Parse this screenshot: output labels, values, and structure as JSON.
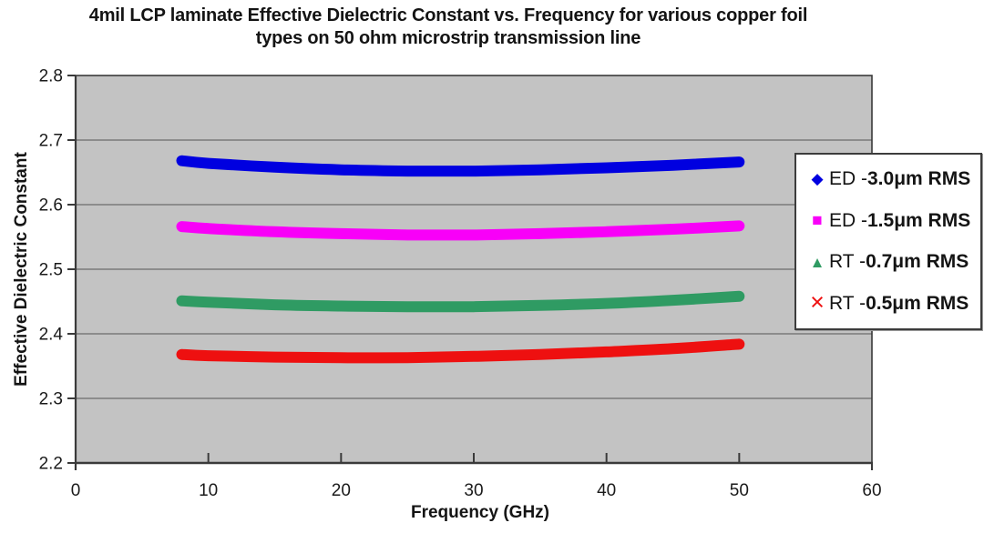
{
  "title": {
    "lines": [
      "4mil LCP laminate Effective Dielectric Constant vs. Frequency for various copper foil",
      "types on 50 ohm microstrip transmission line"
    ]
  },
  "chart_data": {
    "type": "line",
    "title": "4mil LCP laminate Effective Dielectric Constant vs. Frequency for various copper foil types on 50 ohm microstrip transmission line",
    "xlabel": "Frequency (GHz)",
    "ylabel": "Effective Dielectric Constant",
    "xlim": [
      0,
      60
    ],
    "ylim": [
      2.2,
      2.8
    ],
    "x_tick_labels": [
      "0",
      "10",
      "20",
      "30",
      "40",
      "50",
      "60"
    ],
    "y_tick_labels": [
      "2.2",
      "2.3",
      "2.4",
      "2.5",
      "2.6",
      "2.7",
      "2.8"
    ],
    "grid": "horizontal",
    "plot_background": "#c3c3c3",
    "gridline_color": "#6b6b6b",
    "axis_color": "#3a3a3a",
    "legend_position": "right-overlay",
    "x": [
      8,
      10,
      15,
      20,
      25,
      30,
      35,
      40,
      45,
      50
    ],
    "series": [
      {
        "name": "ED - 3.0μm RMS",
        "label_prefix": "ED - ",
        "label_spec": "3.0μm RMS",
        "marker": "diamond",
        "marker_glyph": "◆",
        "color": "#0000e0",
        "values": [
          2.668,
          2.664,
          2.658,
          2.654,
          2.652,
          2.652,
          2.654,
          2.657,
          2.661,
          2.666
        ]
      },
      {
        "name": "ED - 1.5μm RMS",
        "label_prefix": "ED - ",
        "label_spec": "1.5μm RMS",
        "marker": "square",
        "marker_glyph": "■",
        "color": "#f800f8",
        "values": [
          2.566,
          2.563,
          2.558,
          2.555,
          2.553,
          2.553,
          2.555,
          2.558,
          2.562,
          2.567
        ]
      },
      {
        "name": "RT - 0.7μm RMS",
        "label_prefix": "RT - ",
        "label_spec": "0.7μm RMS",
        "marker": "triangle",
        "marker_glyph": "▲",
        "color": "#2f9b63",
        "values": [
          2.451,
          2.449,
          2.445,
          2.443,
          2.442,
          2.442,
          2.444,
          2.447,
          2.452,
          2.458
        ]
      },
      {
        "name": "RT - 0.5μm RMS",
        "label_prefix": "RT - ",
        "label_spec": "0.5μm RMS",
        "marker": "x",
        "marker_glyph": "×",
        "color": "#ee1010",
        "values": [
          2.368,
          2.366,
          2.364,
          2.363,
          2.363,
          2.365,
          2.368,
          2.372,
          2.377,
          2.384
        ]
      }
    ]
  }
}
